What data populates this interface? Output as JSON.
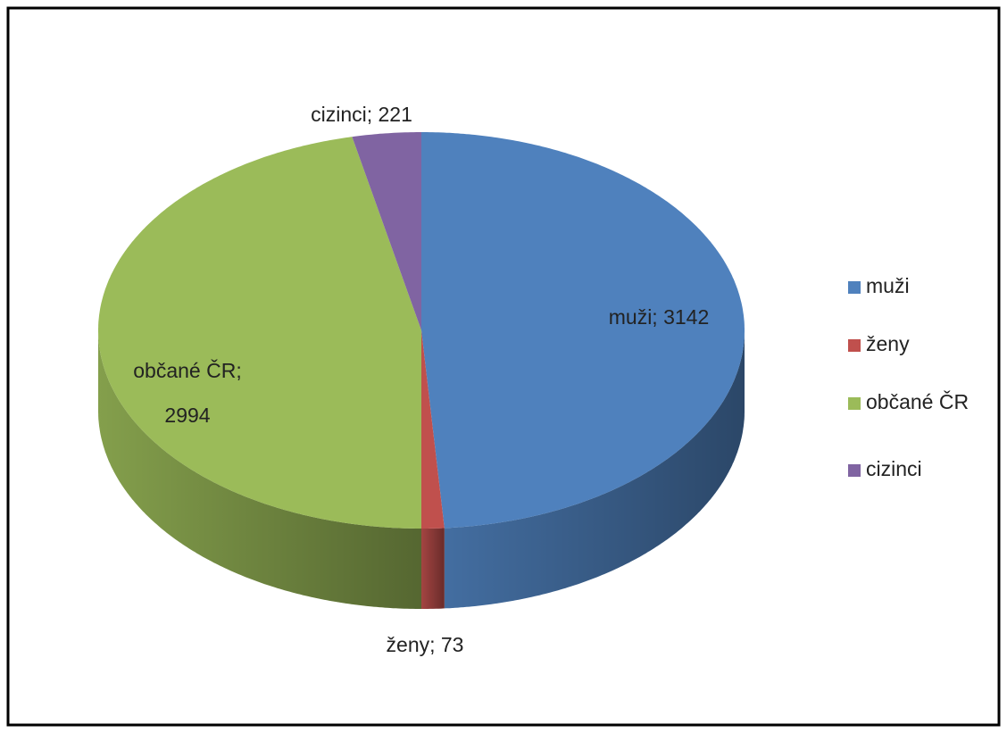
{
  "chart_data": {
    "type": "pie3d",
    "categories": [
      "muži",
      "ženy",
      "občané ČR",
      "cizinci"
    ],
    "values": [
      3142,
      73,
      2994,
      221
    ],
    "value_labels": [
      "muži; 3142",
      "ženy; 73",
      "občané ČR; 2994",
      "cizinci; 221"
    ],
    "colors": [
      "#4f81bd",
      "#c0504d",
      "#9bbb59",
      "#8064a2"
    ],
    "legend": "right"
  }
}
